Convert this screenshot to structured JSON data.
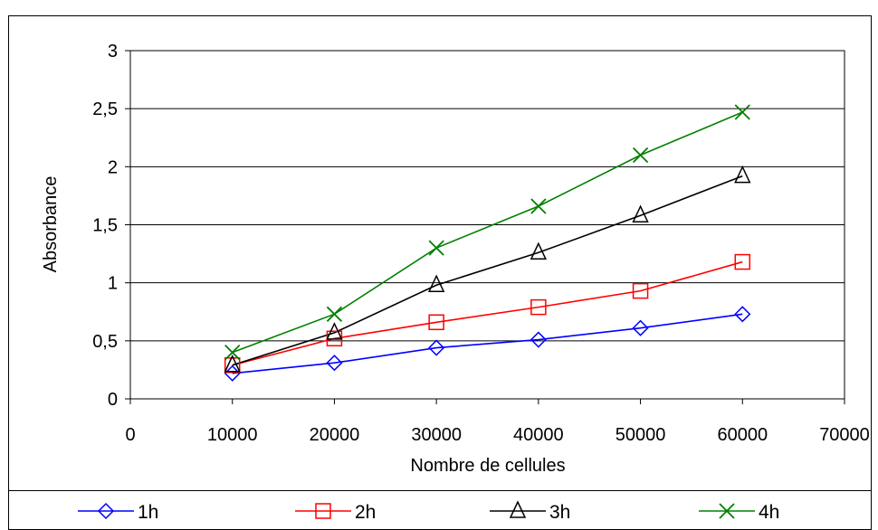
{
  "chart_data": {
    "type": "line",
    "xlabel": "Nombre de cellules",
    "ylabel": "Absorbance",
    "xlim": [
      0,
      70000
    ],
    "ylim": [
      0,
      3
    ],
    "x_ticks": [
      "0",
      "10000",
      "20000",
      "30000",
      "40000",
      "50000",
      "60000",
      "70000"
    ],
    "y_ticks": [
      "0",
      "0,5",
      "1",
      "1,5",
      "2",
      "2,5",
      "3"
    ],
    "grid": "horizontal",
    "legend_position": "bottom",
    "x": [
      10000,
      20000,
      30000,
      40000,
      50000,
      60000
    ],
    "series": [
      {
        "name": "1h",
        "color": "#0000ff",
        "marker": "diamond",
        "values": [
          0.22,
          0.31,
          0.44,
          0.51,
          0.61,
          0.73
        ]
      },
      {
        "name": "2h",
        "color": "#ff0000",
        "marker": "square",
        "values": [
          0.29,
          0.52,
          0.66,
          0.79,
          0.93,
          1.18
        ]
      },
      {
        "name": "3h",
        "color": "#000000",
        "marker": "triangle",
        "values": [
          0.29,
          0.57,
          0.98,
          1.26,
          1.58,
          1.92
        ]
      },
      {
        "name": "4h",
        "color": "#008000",
        "marker": "x",
        "values": [
          0.4,
          0.73,
          1.3,
          1.66,
          2.1,
          2.47
        ]
      }
    ]
  }
}
